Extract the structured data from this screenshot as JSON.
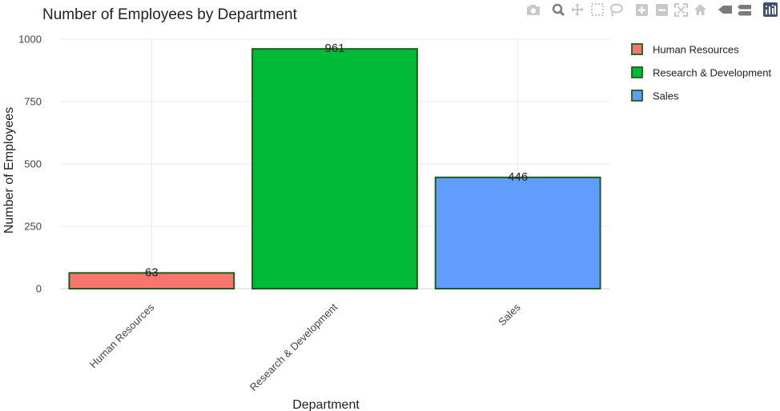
{
  "chart_data": {
    "type": "bar",
    "title": "Number of Employees by Department",
    "xlabel": "Department",
    "ylabel": "Number of Employees",
    "categories": [
      "Human Resources",
      "Research & Development",
      "Sales"
    ],
    "values": [
      63,
      961,
      446
    ],
    "data_labels": [
      "63",
      "961",
      "446"
    ],
    "colors": [
      "#f8766d",
      "#00ba38",
      "#619cff"
    ],
    "bar_border_color": "#1a5e1a",
    "ylim": [
      0,
      1000
    ],
    "yticks": [
      0,
      250,
      500,
      750,
      1000
    ],
    "ytick_labels": [
      "0",
      "250",
      "500",
      "750",
      "1000"
    ],
    "grid": true,
    "legend": {
      "placement": "top-right",
      "entries": [
        "Human Resources",
        "Research & Development",
        "Sales"
      ]
    }
  },
  "modebar": {
    "icons": [
      "camera-icon",
      "zoom-icon",
      "pan-icon",
      "box-select-icon",
      "lasso-icon",
      "zoom-in-icon",
      "zoom-out-icon",
      "autoscale-icon",
      "home-icon",
      "hover-closest-icon",
      "hover-compare-icon",
      "plotly-logo-icon"
    ]
  }
}
